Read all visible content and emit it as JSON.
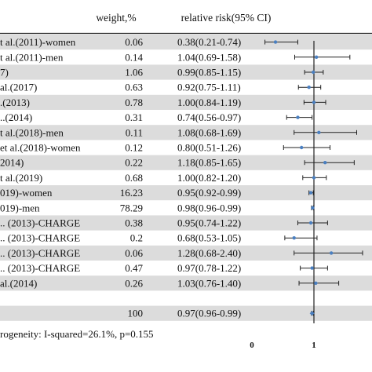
{
  "headers": {
    "weight": "weight,%",
    "rr": "relative risk(95% CI)"
  },
  "chart_data": {
    "type": "forest",
    "x_ticks": [
      0,
      1
    ],
    "xlim": [
      -0.2,
      1.75
    ],
    "reference_line": 1,
    "rows": [
      {
        "study": "t al.(2011)-women",
        "weight": "0.06",
        "ci_text": "0.38(0.21-0.74)",
        "rr": 0.38,
        "lo": 0.21,
        "hi": 0.74
      },
      {
        "study": "t al.(2011)-men",
        "weight": "0.14",
        "ci_text": "1.04(0.69-1.58)",
        "rr": 1.04,
        "lo": 0.69,
        "hi": 1.58
      },
      {
        "study": "7)",
        "weight": "1.06",
        "ci_text": "0.99(0.85-1.15)",
        "rr": 0.99,
        "lo": 0.85,
        "hi": 1.15
      },
      {
        "study": "al.(2017)",
        "weight": "0.63",
        "ci_text": "0.92(0.75-1.11)",
        "rr": 0.92,
        "lo": 0.75,
        "hi": 1.11
      },
      {
        "study": ".(2013)",
        "weight": "0.78",
        "ci_text": "1.00(0.84-1.19)",
        "rr": 1.0,
        "lo": 0.84,
        "hi": 1.19
      },
      {
        "study": "..(2014)",
        "weight": "0.31",
        "ci_text": "0.74(0.56-0.97)",
        "rr": 0.74,
        "lo": 0.56,
        "hi": 0.97
      },
      {
        "study": "t al.(2018)-men",
        "weight": "0.11",
        "ci_text": "1.08(0.68-1.69)",
        "rr": 1.08,
        "lo": 0.68,
        "hi": 1.69
      },
      {
        "study": "et al.(2018)-women",
        "weight": "0.12",
        "ci_text": "0.80(0.51-1.26)",
        "rr": 0.8,
        "lo": 0.51,
        "hi": 1.26
      },
      {
        "study": "2014)",
        "weight": "0.22",
        "ci_text": "1.18(0.85-1.65)",
        "rr": 1.18,
        "lo": 0.85,
        "hi": 1.65
      },
      {
        "study": "t al.(2019)",
        "weight": "0.68",
        "ci_text": "1.00(0.82-1.20)",
        "rr": 1.0,
        "lo": 0.82,
        "hi": 1.2
      },
      {
        "study": "019)-women",
        "weight": "16.23",
        "ci_text": "0.95(0.92-0.99)",
        "rr": 0.95,
        "lo": 0.92,
        "hi": 0.99
      },
      {
        "study": "019)-men",
        "weight": "78.29",
        "ci_text": "0.98(0.96-0.99)",
        "rr": 0.98,
        "lo": 0.96,
        "hi": 0.99
      },
      {
        "study": ".. (2013)-CHARGE",
        "weight": "0.38",
        "ci_text": "0.95(0.74-1.22)",
        "rr": 0.95,
        "lo": 0.74,
        "hi": 1.22
      },
      {
        "study": ".. (2013)-CHARGE",
        "weight": "0.2",
        "ci_text": "0.68(0.53-1.05)",
        "rr": 0.68,
        "lo": 0.53,
        "hi": 1.05
      },
      {
        "study": ".. (2013)-CHARGE",
        "weight": "0.06",
        "ci_text": "1.28(0.68-2.40)",
        "rr": 1.28,
        "lo": 0.68,
        "hi": 2.4
      },
      {
        "study": ".. (2013)-CHARGE",
        "weight": "0.47",
        "ci_text": "0.97(0.78-1.22)",
        "rr": 0.97,
        "lo": 0.78,
        "hi": 1.22
      },
      {
        "study": "al.(2014)",
        "weight": "0.26",
        "ci_text": "1.03(0.76-1.40)",
        "rr": 1.03,
        "lo": 0.76,
        "hi": 1.4
      }
    ],
    "overall": {
      "weight": "100",
      "ci_text": "0.97(0.96-0.99)",
      "rr": 0.97,
      "lo": 0.96,
      "hi": 0.99
    },
    "heterogeneity": "rogeneity: I-squared=26.1%, p=0.155",
    "colors": {
      "marker": "#4a7fc0",
      "row_shade": "#dcdcdc",
      "line": "#222222"
    }
  }
}
